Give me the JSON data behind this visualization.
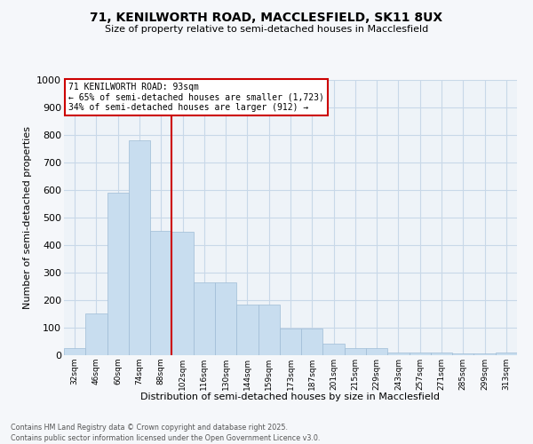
{
  "title_line1": "71, KENILWORTH ROAD, MACCLESFIELD, SK11 8UX",
  "title_line2": "Size of property relative to semi-detached houses in Macclesfield",
  "xlabel": "Distribution of semi-detached houses by size in Macclesfield",
  "ylabel": "Number of semi-detached properties",
  "categories": [
    "32sqm",
    "46sqm",
    "60sqm",
    "74sqm",
    "88sqm",
    "102sqm",
    "116sqm",
    "130sqm",
    "144sqm",
    "159sqm",
    "173sqm",
    "187sqm",
    "201sqm",
    "215sqm",
    "229sqm",
    "243sqm",
    "257sqm",
    "271sqm",
    "285sqm",
    "299sqm",
    "313sqm"
  ],
  "values": [
    25,
    153,
    590,
    780,
    453,
    450,
    263,
    263,
    183,
    183,
    98,
    98,
    42,
    27,
    27,
    11,
    11,
    11,
    5,
    5,
    11
  ],
  "bar_color": "#c8ddef",
  "bar_edge_color": "#9fbcd6",
  "grid_color": "#c8d8e8",
  "annotation_text": "71 KENILWORTH ROAD: 93sqm\n← 65% of semi-detached houses are smaller (1,723)\n34% of semi-detached houses are larger (912) →",
  "vline_color": "#cc0000",
  "box_edge_color": "#cc0000",
  "ylim_max": 1000,
  "yticks": [
    0,
    100,
    200,
    300,
    400,
    500,
    600,
    700,
    800,
    900,
    1000
  ],
  "footnote_line1": "Contains HM Land Registry data © Crown copyright and database right 2025.",
  "footnote_line2": "Contains public sector information licensed under the Open Government Licence v3.0.",
  "plot_bg": "#eef3f8",
  "fig_bg": "#f5f7fa"
}
